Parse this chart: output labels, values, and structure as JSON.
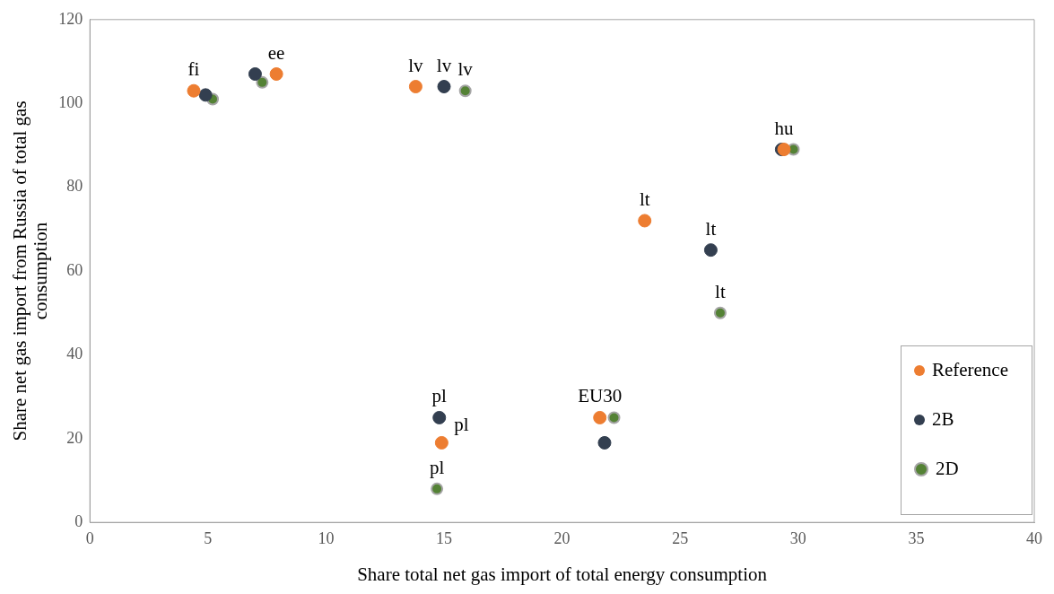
{
  "chart_data": {
    "type": "scatter",
    "xlabel": "Share total net gas import of total energy consumption",
    "ylabel": "Share net gas import from Russia of total gas consumption",
    "xlim": [
      0,
      40
    ],
    "xticks": [
      0,
      5,
      10,
      15,
      20,
      25,
      30,
      35,
      40
    ],
    "ylim": [
      0,
      120
    ],
    "yticks": [
      0,
      20,
      40,
      60,
      80,
      100,
      120
    ],
    "grid": false,
    "legend": "bottom right",
    "marker": "circle",
    "series": [
      {
        "name": "Reference",
        "color": "#ed7d31",
        "x": [
          4.4,
          7.9,
          13.8,
          23.5,
          29.4,
          14.9,
          21.6
        ],
        "values": [
          103,
          107,
          104,
          72,
          89,
          19,
          25
        ]
      },
      {
        "name": "2B",
        "color": "#333f50",
        "x": [
          4.9,
          7.0,
          15.0,
          26.3,
          29.3,
          14.8,
          21.8
        ],
        "values": [
          102,
          107,
          104,
          65,
          89,
          25,
          19
        ]
      },
      {
        "name": "2D",
        "color": "#548235",
        "x": [
          5.2,
          7.3,
          15.9,
          26.7,
          29.8,
          14.7,
          22.2
        ],
        "values": [
          101,
          105,
          103,
          50,
          89,
          8,
          25
        ]
      }
    ],
    "annotations": [
      {
        "text": "fi",
        "x": 4.4,
        "y": 103
      },
      {
        "text": "ee",
        "x": 7.9,
        "y": 107
      },
      {
        "text": "lv",
        "x": 13.8,
        "y": 104
      },
      {
        "text": "lv",
        "x": 15.0,
        "y": 104
      },
      {
        "text": "lv",
        "x": 15.9,
        "y": 103
      },
      {
        "text": "lt",
        "x": 23.5,
        "y": 72
      },
      {
        "text": "lt",
        "x": 26.3,
        "y": 65
      },
      {
        "text": "lt",
        "x": 26.7,
        "y": 50
      },
      {
        "text": "hu",
        "x": 29.4,
        "y": 89
      },
      {
        "text": "pl",
        "x": 14.8,
        "y": 25
      },
      {
        "text": "pl",
        "x": 14.9,
        "y": 19
      },
      {
        "text": "pl",
        "x": 14.7,
        "y": 8
      },
      {
        "text": "EU30",
        "x": 21.6,
        "y": 25
      }
    ]
  }
}
